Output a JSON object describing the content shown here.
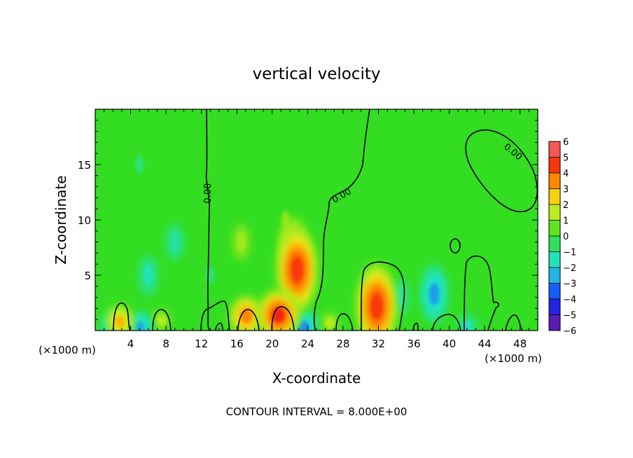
{
  "chart_data": {
    "type": "heatmap",
    "title": "vertical velocity",
    "xlabel": "X-coordinate",
    "ylabel": "Z-coordinate",
    "x_units_left": "(×1000 m)",
    "x_units_right": "(×1000 m)",
    "footer": "CONTOUR INTERVAL = 8.000E+00",
    "xlim": [
      0,
      50
    ],
    "ylim": [
      0,
      20
    ],
    "x_ticks": [
      4,
      8,
      12,
      16,
      20,
      24,
      28,
      32,
      36,
      40,
      44,
      48
    ],
    "y_ticks": [
      5,
      10,
      15
    ],
    "colorbar": {
      "min": -6,
      "max": 6,
      "labels": [
        "6",
        "5",
        "4",
        "3",
        "2",
        "1",
        "0",
        "−1",
        "−2",
        "−3",
        "−4",
        "−5",
        "−6"
      ]
    },
    "contour_labels": [
      "0.00",
      "0.00",
      "0.00"
    ],
    "features": [
      {
        "x": 22.8,
        "z": 5.5,
        "value": 4.5
      },
      {
        "x": 22.3,
        "z": 7.5,
        "value": 3.0
      },
      {
        "x": 31.8,
        "z": 2.2,
        "value": 4.5
      },
      {
        "x": 20.7,
        "z": 1.4,
        "value": 4.8
      },
      {
        "x": 17.1,
        "z": 1.3,
        "value": 3.6
      },
      {
        "x": 2.8,
        "z": 0.8,
        "value": 3.0
      },
      {
        "x": 7.5,
        "z": 0.9,
        "value": 1.5
      },
      {
        "x": 26.5,
        "z": 0.7,
        "value": 1.5
      },
      {
        "x": 16.5,
        "z": 8.0,
        "value": 1.2
      },
      {
        "x": 21.5,
        "z": 10.0,
        "value": 1.0
      },
      {
        "x": 38.3,
        "z": 3.3,
        "value": -2.8
      },
      {
        "x": 6.0,
        "z": 5.0,
        "value": -1.6
      },
      {
        "x": 9.0,
        "z": 8.0,
        "value": -1.2
      },
      {
        "x": 5.0,
        "z": 15.0,
        "value": -0.8
      },
      {
        "x": 2.0,
        "z": 0.4,
        "value": -2.2
      },
      {
        "x": 5.0,
        "z": 0.3,
        "value": -2.6
      },
      {
        "x": 23.6,
        "z": 0.3,
        "value": -3.0
      },
      {
        "x": 34.5,
        "z": 3.0,
        "value": -1.2
      },
      {
        "x": 42.0,
        "z": 0.4,
        "value": -1.8
      },
      {
        "x": 13.0,
        "z": 5.0,
        "value": -0.8
      }
    ]
  }
}
